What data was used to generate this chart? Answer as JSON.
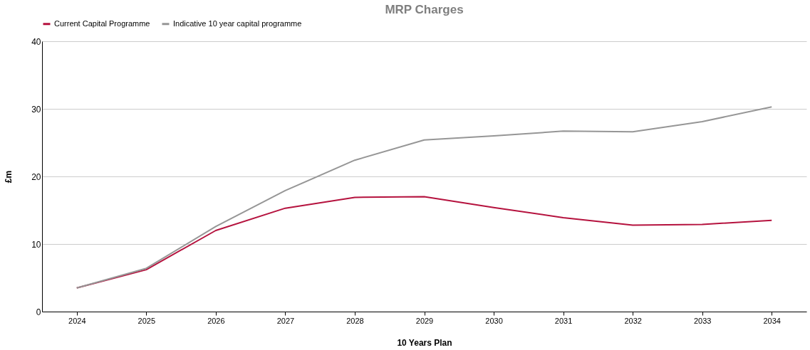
{
  "chart_data": {
    "type": "line",
    "title": "MRP Charges",
    "xlabel": "10 Years Plan",
    "ylabel": "£m",
    "categories": [
      "2024",
      "2025",
      "2026",
      "2027",
      "2028",
      "2029",
      "2030",
      "2031",
      "2032",
      "2033",
      "2034"
    ],
    "series": [
      {
        "name": "Current Capital Programme",
        "color": "#b5123e",
        "values": [
          3.5,
          6.2,
          12.0,
          15.3,
          16.9,
          17.0,
          15.4,
          13.9,
          12.8,
          12.9,
          13.5
        ]
      },
      {
        "name": "Indicative 10 year capital programme",
        "color": "#969696",
        "values": [
          3.5,
          6.4,
          12.6,
          17.9,
          22.4,
          25.4,
          26.0,
          26.7,
          26.6,
          28.1,
          30.3
        ]
      }
    ],
    "ylim": [
      0,
      40
    ],
    "yticks": [
      0,
      10,
      20,
      30,
      40
    ],
    "grid": "y",
    "legend": "top",
    "marker": "none",
    "line_style": "solid"
  }
}
